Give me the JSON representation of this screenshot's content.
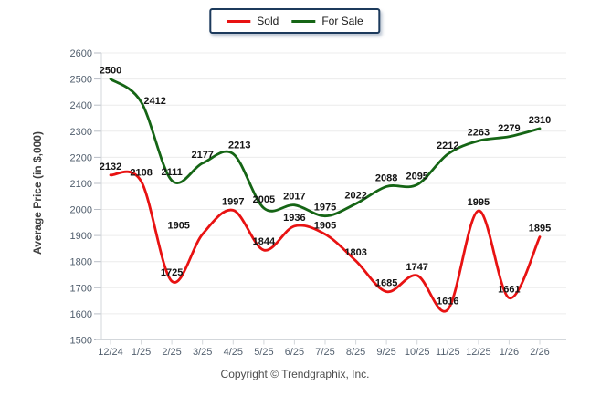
{
  "chart_data": {
    "type": "line",
    "title": "",
    "categories": [
      "12/24",
      "1/25",
      "2/25",
      "3/25",
      "4/25",
      "5/25",
      "6/25",
      "7/25",
      "8/25",
      "9/25",
      "10/25",
      "11/25",
      "12/25",
      "1/26",
      "2/26"
    ],
    "series": [
      {
        "name": "Sold",
        "color": "#e81212",
        "values": [
          2132,
          2108,
          1725,
          1905,
          1997,
          1844,
          1936,
          1905,
          1803,
          1685,
          1747,
          1616,
          1995,
          1661,
          1895
        ]
      },
      {
        "name": "For Sale",
        "color": "#156515",
        "values": [
          2500,
          2412,
          2111,
          2177,
          2213,
          2005,
          2017,
          1975,
          2022,
          2088,
          2095,
          2212,
          2263,
          2279,
          2310
        ]
      }
    ],
    "xlabel": "",
    "ylabel": "Average Price (in $,000)",
    "ylim": [
      1500,
      2600
    ],
    "y_tick_step": 100,
    "grid": true,
    "legend_position": "top-center"
  },
  "footer": {
    "copyright": "Copyright © Trendgraphix, Inc."
  },
  "colors": {
    "grid": "#ececec",
    "axis": "#d3d7db",
    "tick": "#b9bec6",
    "tick_label": "#525f6e",
    "data_label": "#141414",
    "legend_border": "#1c3a5c"
  }
}
